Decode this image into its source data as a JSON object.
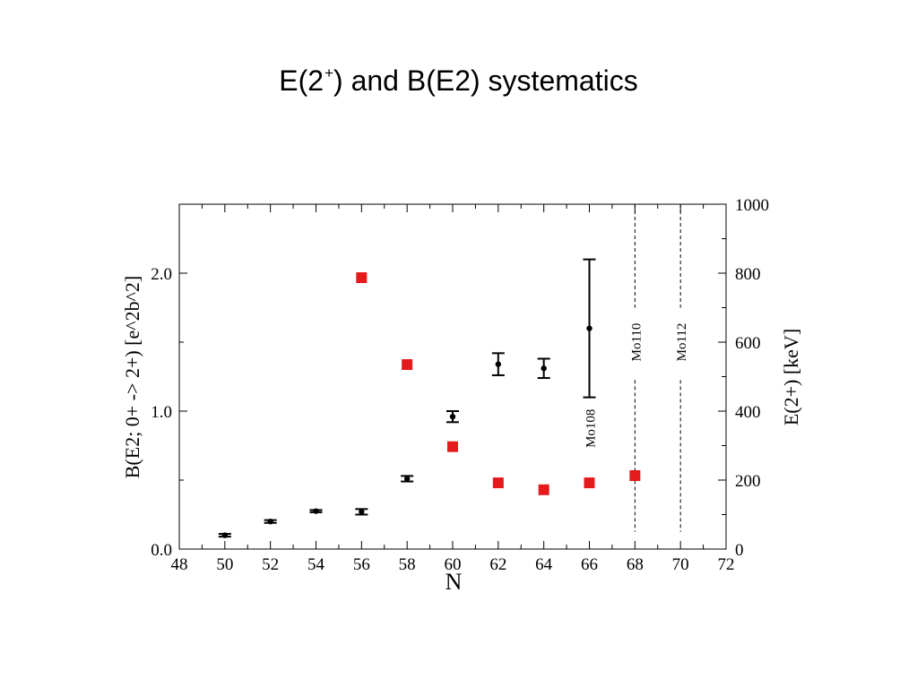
{
  "slide": {
    "title_main": "E(2",
    "title_sup": "+",
    "title_rest": ") and B(E2) systematics"
  },
  "chart_data": {
    "type": "scatter",
    "title": "E(2+) and B(E2) systematics",
    "xlabel": "N",
    "ylabel_left": "B(E2; 0+ -> 2+) [e^2b^2]",
    "ylabel_right": "E(2+) [keV]",
    "xlim": [
      48,
      72
    ],
    "ylim_left": [
      0.0,
      2.5
    ],
    "ylim_right": [
      0,
      1000
    ],
    "x_ticks": [
      48,
      50,
      52,
      54,
      56,
      58,
      60,
      62,
      64,
      66,
      68,
      70,
      72
    ],
    "left_ticks": [
      {
        "value": 0.0,
        "label": "0.0"
      },
      {
        "value": 1.0,
        "label": "1.0"
      },
      {
        "value": 2.0,
        "label": "2.0"
      }
    ],
    "right_ticks": [
      0,
      200,
      400,
      600,
      800,
      1000
    ],
    "grid": false,
    "series": [
      {
        "axis": "left",
        "color": "#000000",
        "marker": "circle",
        "points": [
          {
            "x": 50,
            "y": 0.1,
            "err": 0.01
          },
          {
            "x": 52,
            "y": 0.2,
            "err": 0.01
          },
          {
            "x": 54,
            "y": 0.275,
            "err": 0.008
          },
          {
            "x": 56,
            "y": 0.27,
            "err": 0.02
          },
          {
            "x": 58,
            "y": 0.51,
            "err": 0.02
          },
          {
            "x": 60,
            "y": 0.96,
            "err": 0.04
          },
          {
            "x": 62,
            "y": 1.34,
            "err": 0.08
          },
          {
            "x": 64,
            "y": 1.31,
            "err": 0.07
          },
          {
            "x": 66,
            "y": 1.6,
            "err": 0.5
          }
        ]
      },
      {
        "axis": "right",
        "color": "#e41a1c",
        "marker": "square",
        "points": [
          {
            "x": 56,
            "y": 787
          },
          {
            "x": 58,
            "y": 535
          },
          {
            "x": 60,
            "y": 297
          },
          {
            "x": 62,
            "y": 192
          },
          {
            "x": 64,
            "y": 172
          },
          {
            "x": 66,
            "y": 192
          },
          {
            "x": 68,
            "y": 213
          }
        ]
      }
    ],
    "annotations": [
      {
        "text": "Mo108",
        "x": 66,
        "y": 350
      },
      {
        "text": "Mo110",
        "x": 68,
        "y": 600
      },
      {
        "text": "Mo112",
        "x": 70,
        "y": 600
      }
    ],
    "reference_lines": [
      {
        "x": 68,
        "dashed": true
      },
      {
        "x": 70,
        "dashed": true
      }
    ]
  }
}
